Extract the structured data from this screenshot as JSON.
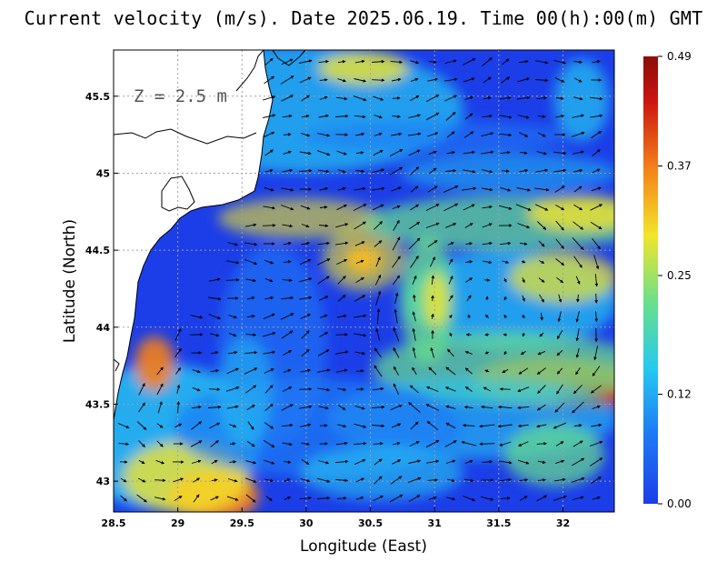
{
  "title": "Current velocity (m/s). Date 2025.06.19. Time 00(h):00(m) GMT",
  "depth_label": "Z = 2.5 m",
  "x_axis": {
    "label": "Longitude (East)",
    "range": [
      28.5,
      32.4
    ],
    "ticks": [
      "28.5",
      "29",
      "29.5",
      "30",
      "30.5",
      "31",
      "31.5",
      "32"
    ]
  },
  "y_axis": {
    "label": "Latitude (North)",
    "range": [
      42.8,
      45.8
    ],
    "ticks": [
      "43",
      "43.5",
      "44",
      "44.5",
      "45",
      "45.5"
    ]
  },
  "colorbar": {
    "min": 0.0,
    "max": 0.49,
    "ticks": [
      "0.00",
      "0.12",
      "0.25",
      "0.37",
      "0.49"
    ],
    "colors": [
      "#1c3ee8",
      "#1e7cf5",
      "#25c8f0",
      "#68e08a",
      "#f2e52a",
      "#f5801a",
      "#cc1510",
      "#8a0e08"
    ]
  },
  "colors": {
    "land": "#ffffff",
    "coastline": "#000000",
    "grid": "#a0a0a0",
    "sea_base": "#1c3ee8",
    "arrow": "#000000"
  },
  "grid": "dotted"
}
